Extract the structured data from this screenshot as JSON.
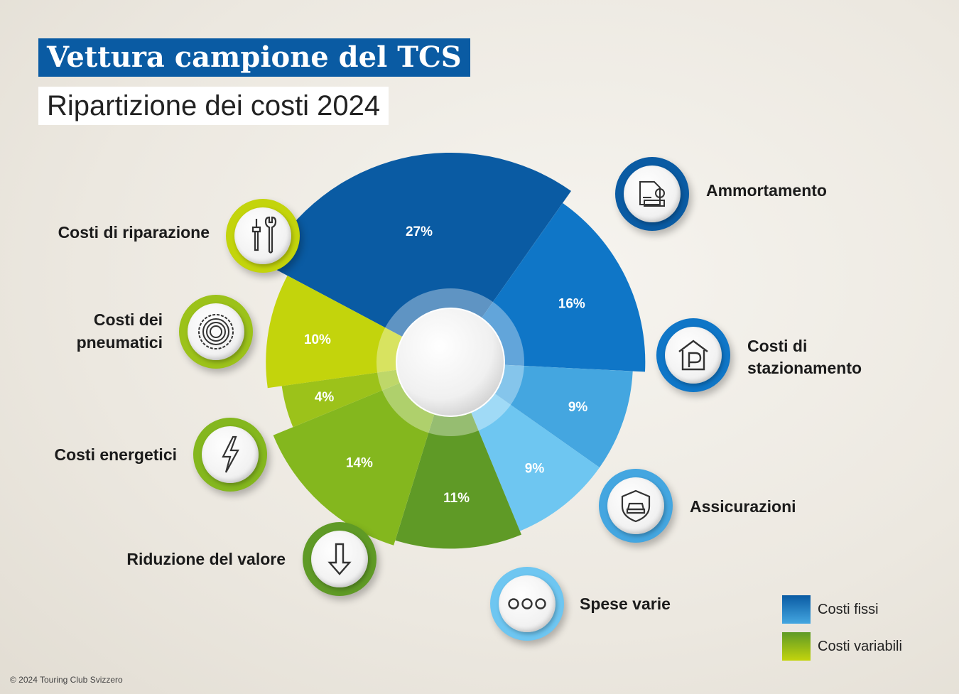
{
  "header": {
    "title": "Vettura campione del TCS",
    "subtitle": "Ripartizione dei costi 2024"
  },
  "chart_data": {
    "type": "pie",
    "style": "polar-area donut",
    "categories": [
      "Ammortamento",
      "Costi di stazionamento",
      "Assicurazioni",
      "Spese varie",
      "Riduzione del valore",
      "Costi energetici",
      "Costi dei pneumatici",
      "Costi di riparazione"
    ],
    "values": [
      27,
      16,
      9,
      9,
      11,
      14,
      4,
      10
    ],
    "value_labels": [
      "27%",
      "16%",
      "9%",
      "9%",
      "11%",
      "14%",
      "4%",
      "10%"
    ],
    "groups": [
      "Costi fissi",
      "Costi fissi",
      "Costi fissi",
      "Costi fissi",
      "Costi variabili",
      "Costi variabili",
      "Costi variabili",
      "Costi variabili"
    ],
    "colors": [
      "#0a5ba3",
      "#0f76c7",
      "#44a6e0",
      "#6ec6f1",
      "#5f9a26",
      "#84b71e",
      "#9cc21a",
      "#c3d40c"
    ],
    "legend": [
      {
        "name": "Costi fissi",
        "color": "#1a6fb8"
      },
      {
        "name": "Costi variabili",
        "color": "#8cbc1e"
      }
    ],
    "legend_position": "bottom-right"
  },
  "labels": {
    "ammortamento": "Ammortamento",
    "stazionamento_1": "Costi di",
    "stazionamento_2": "stazionamento",
    "assicurazioni": "Assicurazioni",
    "spese": "Spese varie",
    "riduzione": "Riduzione del valore",
    "energetici": "Costi energetici",
    "pneumatici_1": "Costi dei",
    "pneumatici_2": "pneumatici",
    "riparazione": "Costi di riparazione"
  },
  "icons": {
    "ammortamento": "car-document-icon",
    "stazionamento": "parking-icon",
    "assicurazioni": "car-shield-icon",
    "spese": "three-dots-icon",
    "riduzione": "arrow-down-icon",
    "energetici": "lightning-icon",
    "pneumatici": "tire-icon",
    "riparazione": "tools-icon"
  },
  "footer": {
    "copyright": "© 2024 Touring Club Svizzero"
  }
}
